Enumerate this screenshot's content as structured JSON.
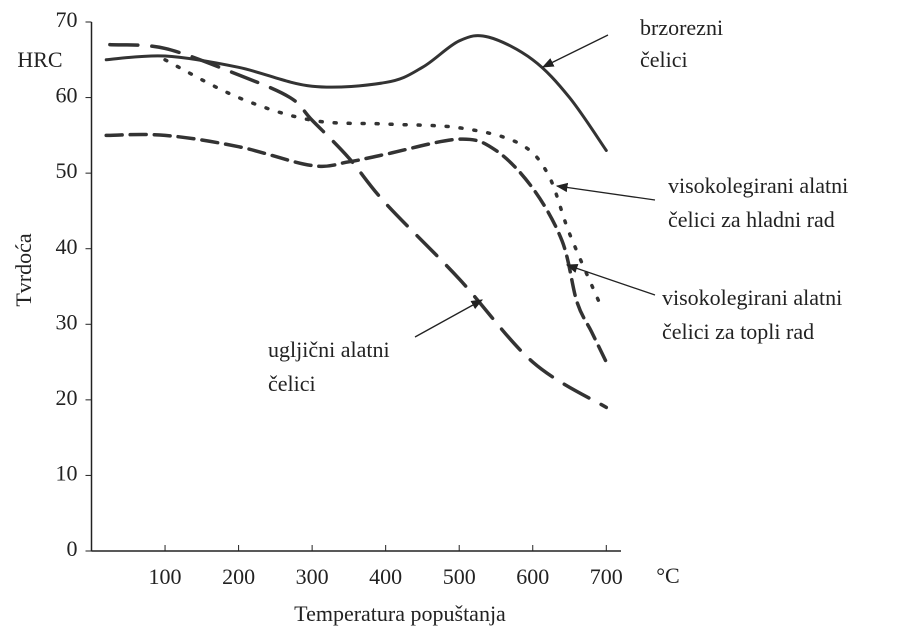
{
  "chart_data": {
    "type": "line",
    "x_label": "Temperatura popuštanja",
    "y_label": "Tvrdoća",
    "y_unit": "HRC",
    "x_unit": "°C",
    "xlim": [
      0,
      720
    ],
    "xticks": [
      100,
      200,
      300,
      400,
      500,
      600,
      700
    ],
    "ylim": [
      0,
      70
    ],
    "yticks": [
      0,
      10,
      20,
      30,
      40,
      50,
      60,
      70
    ],
    "series": [
      {
        "label": [
          "brzorezni",
          "čelici"
        ],
        "color": "#333333",
        "dash": "none",
        "x": [
          20,
          100,
          200,
          300,
          400,
          450,
          500,
          540,
          600,
          650,
          700
        ],
        "values": [
          65,
          65.5,
          64,
          61.5,
          62,
          64,
          67.5,
          68,
          65,
          60,
          53
        ]
      },
      {
        "label": [
          "visokolegirani alatni",
          "čelici za hladni rad"
        ],
        "color": "#333333",
        "dash": "2 12",
        "x": [
          100,
          200,
          300,
          400,
          500,
          580,
          620,
          650,
          690
        ],
        "values": [
          65,
          60,
          57,
          56.5,
          56,
          54,
          50,
          42,
          33
        ]
      },
      {
        "label": [
          "visokolegirani alatni",
          "čelici za topli rad"
        ],
        "color": "#333333",
        "dash": "16 8",
        "x": [
          20,
          100,
          200,
          300,
          350,
          400,
          500,
          550,
          600,
          640,
          660,
          680,
          700
        ],
        "values": [
          55,
          55,
          53.5,
          51,
          51.5,
          52.5,
          54.5,
          53,
          48,
          41,
          33,
          29,
          25
        ]
      },
      {
        "label": [
          "ugljični alatni",
          "čelici"
        ],
        "color": "#333333",
        "dash": "28 14",
        "x": [
          25,
          100,
          200,
          270,
          300,
          350,
          400,
          500,
          600,
          700
        ],
        "values": [
          67,
          66.5,
          63,
          60,
          57,
          52,
          46,
          36,
          25,
          19
        ]
      }
    ]
  }
}
